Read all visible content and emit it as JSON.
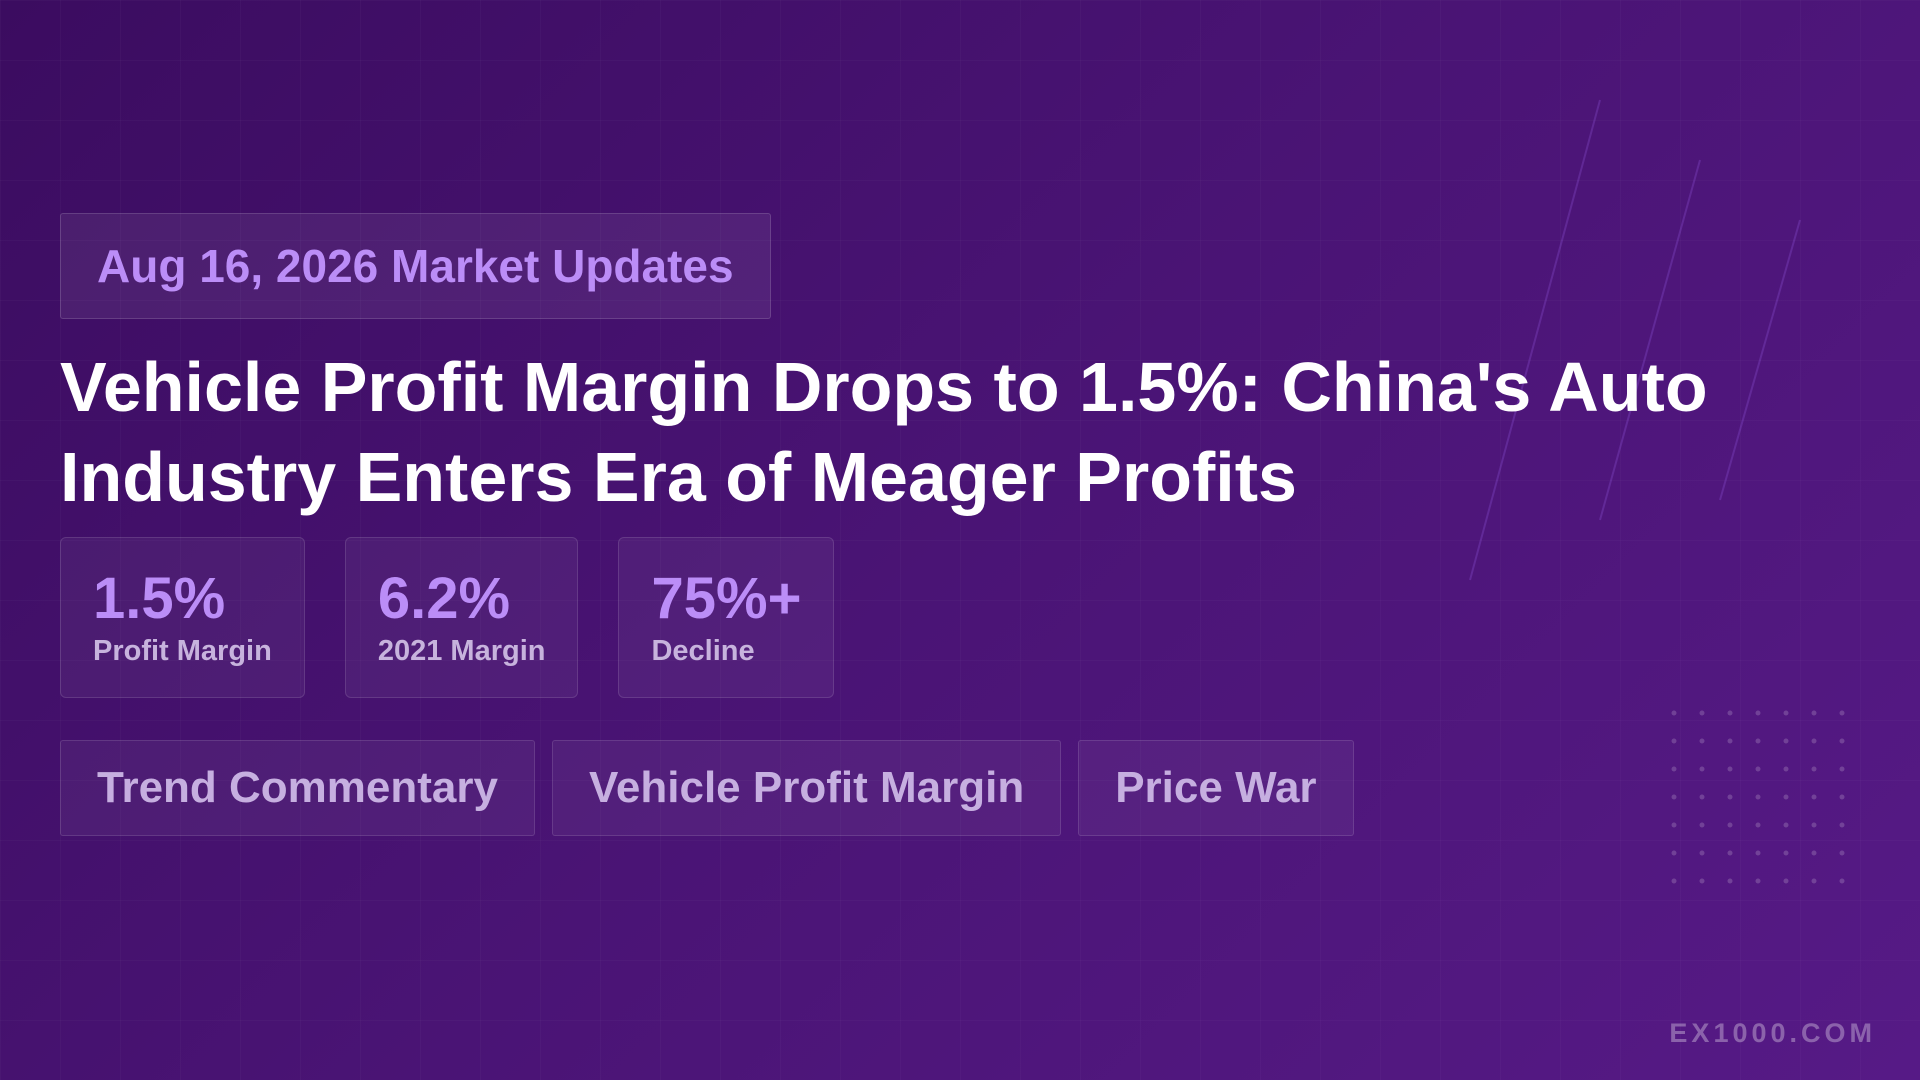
{
  "header": {
    "badge": "Aug 16, 2026 Market Updates"
  },
  "title": "Vehicle Profit Margin Drops to 1.5%: China's Auto Industry Enters Era of Meager Profits",
  "stats": [
    {
      "value": "1.5%",
      "label": "Profit Margin"
    },
    {
      "value": "6.2%",
      "label": "2021 Margin"
    },
    {
      "value": "75%+",
      "label": "Decline"
    }
  ],
  "tags": [
    "Trend Commentary",
    "Vehicle Profit Margin",
    "Price War"
  ],
  "footer": {
    "brand": "EX1000.COM"
  }
}
